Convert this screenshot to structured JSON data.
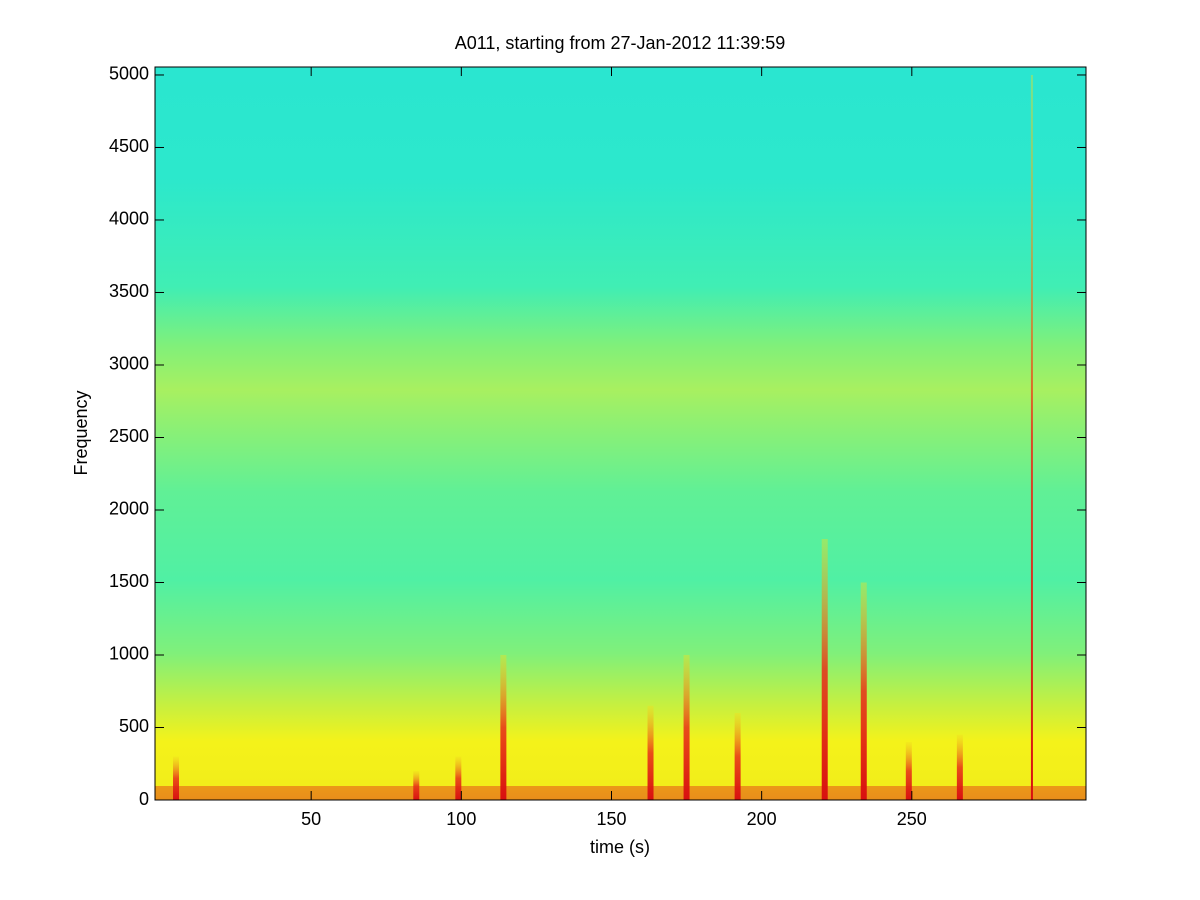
{
  "chart_data": {
    "type": "spectrogram",
    "title": "A011, starting from 27-Jan-2012 11:39:59",
    "x_label": "time (s)",
    "y_label": "Frequency",
    "xlim": [
      -2,
      308
    ],
    "ylim": [
      0,
      5055
    ],
    "xticks": [
      50,
      100,
      150,
      200,
      250
    ],
    "yticks": [
      0,
      500,
      1000,
      1500,
      2000,
      2500,
      3000,
      3500,
      4000,
      4500,
      5000
    ],
    "x": [
      5,
      85,
      99,
      114,
      163,
      175,
      192,
      221,
      234,
      249,
      266,
      290
    ],
    "values": [
      300,
      200,
      300,
      1000,
      650,
      1000,
      600,
      1800,
      1500,
      400,
      450,
      5000
    ]
  }
}
